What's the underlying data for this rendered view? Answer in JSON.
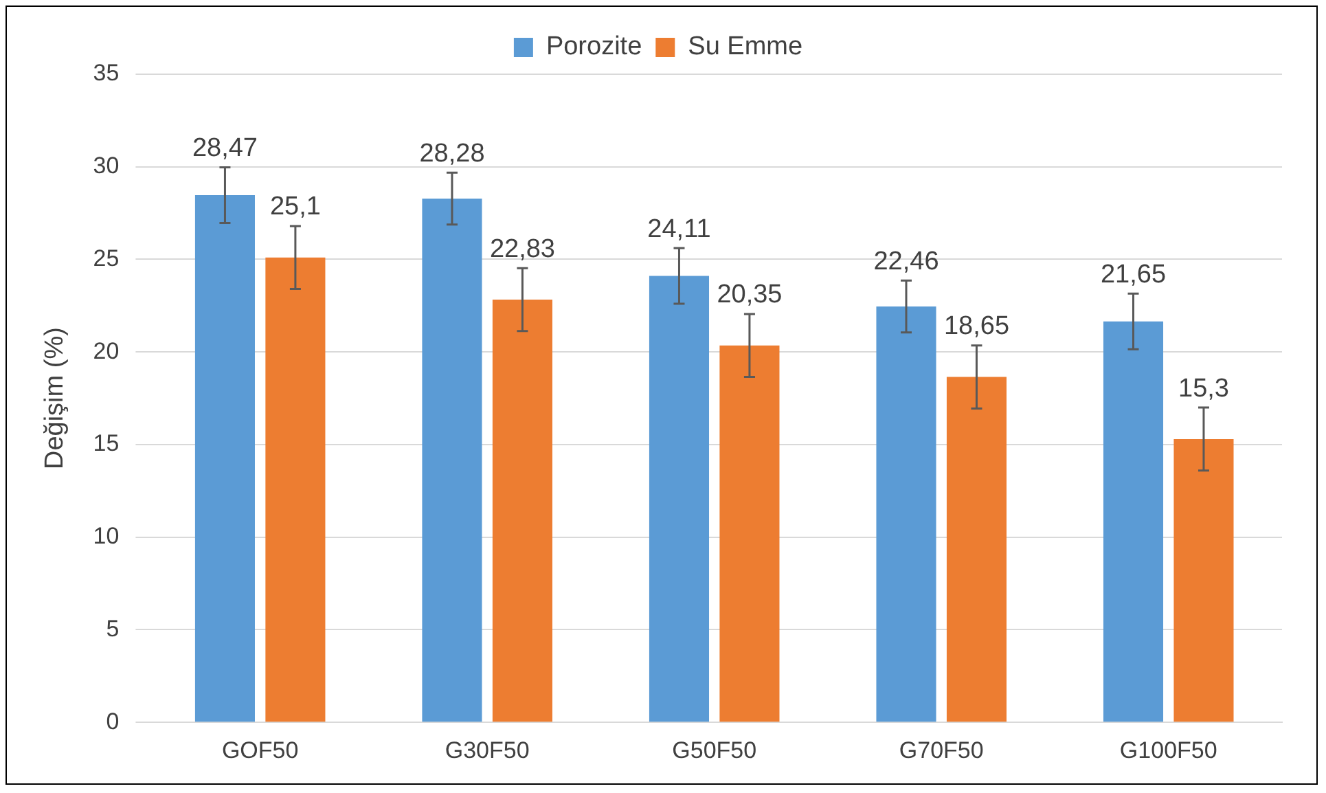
{
  "chart_data": {
    "type": "bar",
    "ylabel": "Değişim (%)",
    "categories": [
      "GOF50",
      "G30F50",
      "G50F50",
      "G70F50",
      "G100F50"
    ],
    "series": [
      {
        "name": "Porozite",
        "color": "#5b9bd5",
        "values": [
          28.47,
          28.28,
          24.11,
          22.46,
          21.65
        ],
        "errors": [
          1.5,
          1.4,
          1.5,
          1.4,
          1.5
        ],
        "value_labels": [
          "28,47",
          "28,28",
          "24,11",
          "22,46",
          "21,65"
        ]
      },
      {
        "name": "Su Emme",
        "color": "#ed7d31",
        "values": [
          25.1,
          22.83,
          20.35,
          18.65,
          15.3
        ],
        "errors": [
          1.7,
          1.7,
          1.7,
          1.7,
          1.7
        ],
        "value_labels": [
          "25,1",
          "22,83",
          "20,35",
          "18,65",
          "15,3"
        ]
      }
    ],
    "ylim": [
      0,
      35
    ],
    "yticks": [
      0,
      5,
      10,
      15,
      20,
      25,
      30,
      35
    ],
    "grid": "y",
    "legend": "top"
  }
}
